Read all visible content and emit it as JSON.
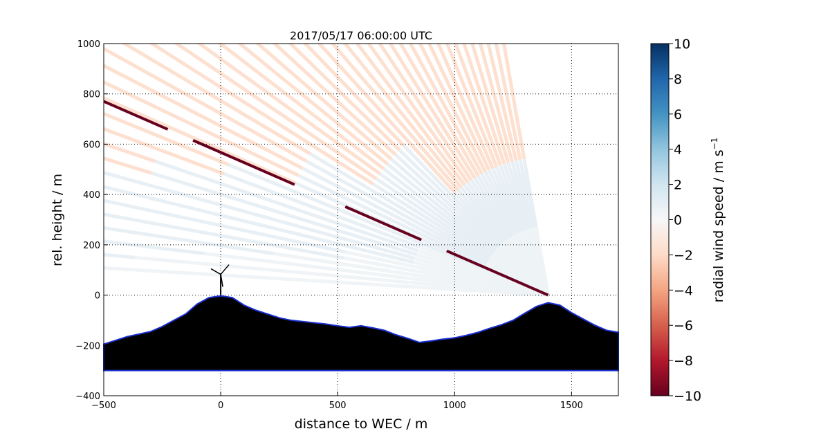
{
  "chart_data": {
    "type": "heatmap",
    "title": "2017/05/17 06:00:00 UTC",
    "xlabel": "distance to WEC / m",
    "ylabel": "rel. height / m",
    "xlim": [
      -500,
      1700
    ],
    "ylim": [
      -400,
      1000
    ],
    "xticks": [
      -500,
      0,
      500,
      1000,
      1500
    ],
    "xtick_labels": [
      "−500",
      "0",
      "500",
      "1000",
      "1500"
    ],
    "yticks": [
      -400,
      -200,
      0,
      200,
      400,
      600,
      800,
      1000
    ],
    "ytick_labels": [
      "−400",
      "−200",
      "0",
      "200",
      "400",
      "600",
      "800",
      "1000"
    ],
    "grid": true,
    "colorbar": {
      "label": "radial wind speed / m s",
      "label_superscript": "−1",
      "range": [
        -10,
        10
      ],
      "colormap": "RdBu",
      "ticks": [
        -10,
        -8,
        -6,
        -4,
        -2,
        0,
        2,
        4,
        6,
        8,
        10
      ],
      "tick_labels": [
        "−10",
        "−8",
        "−6",
        "−4",
        "−2",
        "0",
        "2",
        "4",
        "6",
        "8",
        "10"
      ]
    },
    "lidar_origin": {
      "x": 1400,
      "y": 0
    },
    "wec_position": {
      "x": 0,
      "y": 0
    },
    "wind_regimes": [
      {
        "region": "upper (above ~500 m)",
        "radial_speed": -2
      },
      {
        "region": "middle (~150–450 m)",
        "radial_speed": 1
      },
      {
        "region": "ray along hub direction",
        "radial_speed": -10
      }
    ],
    "terrain": {
      "x": [
        -500,
        -450,
        -400,
        -350,
        -300,
        -250,
        -200,
        -150,
        -100,
        -50,
        0,
        50,
        100,
        150,
        200,
        250,
        300,
        350,
        400,
        450,
        500,
        550,
        600,
        650,
        700,
        750,
        800,
        850,
        900,
        950,
        1000,
        1050,
        1100,
        1150,
        1200,
        1250,
        1300,
        1350,
        1400,
        1450,
        1500,
        1550,
        1600,
        1650,
        1700
      ],
      "y": [
        -195,
        -180,
        -165,
        -155,
        -145,
        -125,
        -100,
        -75,
        -35,
        -10,
        -3,
        -10,
        -40,
        -60,
        -75,
        -90,
        -100,
        -105,
        -110,
        -115,
        -122,
        -128,
        -122,
        -130,
        -140,
        -158,
        -172,
        -188,
        -182,
        -175,
        -170,
        -160,
        -148,
        -132,
        -118,
        -100,
        -72,
        -45,
        -30,
        -40,
        -70,
        -95,
        -120,
        -140,
        -148
      ]
    }
  }
}
